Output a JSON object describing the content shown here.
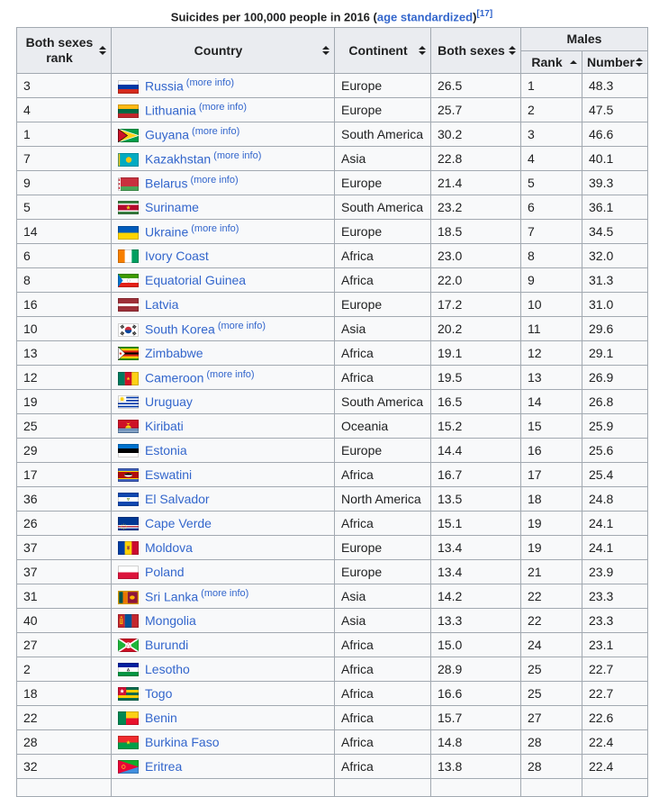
{
  "title": {
    "prefix": "Suicides per 100,000 people in 2016 (",
    "link_text": "age standardized",
    "suffix": ")",
    "reference": "[17]"
  },
  "table": {
    "headers": {
      "both_sexes_rank": "Both sexes rank",
      "country": "Country",
      "continent": "Continent",
      "both_sexes": "Both sexes",
      "males_group": "Males",
      "males_rank": "Rank",
      "males_number": "Number"
    },
    "sort_state": {
      "males_rank": "ascending",
      "others": "unsorted"
    },
    "more_info_label": "(more info)",
    "rows": [
      {
        "both_sexes_rank": "3",
        "country": "Russia",
        "flag": "russia",
        "more_info": true,
        "continent": "Europe",
        "both_sexes": "26.5",
        "males_rank": "1",
        "males_number": "48.3"
      },
      {
        "both_sexes_rank": "4",
        "country": "Lithuania",
        "flag": "lithuania",
        "more_info": true,
        "continent": "Europe",
        "both_sexes": "25.7",
        "males_rank": "2",
        "males_number": "47.5"
      },
      {
        "both_sexes_rank": "1",
        "country": "Guyana",
        "flag": "guyana",
        "more_info": true,
        "continent": "South America",
        "both_sexes": "30.2",
        "males_rank": "3",
        "males_number": "46.6"
      },
      {
        "both_sexes_rank": "7",
        "country": "Kazakhstan",
        "flag": "kazakhstan",
        "more_info": true,
        "continent": "Asia",
        "both_sexes": "22.8",
        "males_rank": "4",
        "males_number": "40.1"
      },
      {
        "both_sexes_rank": "9",
        "country": "Belarus",
        "flag": "belarus",
        "more_info": true,
        "continent": "Europe",
        "both_sexes": "21.4",
        "males_rank": "5",
        "males_number": "39.3"
      },
      {
        "both_sexes_rank": "5",
        "country": "Suriname",
        "flag": "suriname",
        "more_info": false,
        "continent": "South America",
        "both_sexes": "23.2",
        "males_rank": "6",
        "males_number": "36.1"
      },
      {
        "both_sexes_rank": "14",
        "country": "Ukraine",
        "flag": "ukraine",
        "more_info": true,
        "continent": "Europe",
        "both_sexes": "18.5",
        "males_rank": "7",
        "males_number": "34.5"
      },
      {
        "both_sexes_rank": "6",
        "country": "Ivory Coast",
        "flag": "ivory-coast",
        "more_info": false,
        "continent": "Africa",
        "both_sexes": "23.0",
        "males_rank": "8",
        "males_number": "32.0"
      },
      {
        "both_sexes_rank": "8",
        "country": "Equatorial Guinea",
        "flag": "equatorial-guinea",
        "more_info": false,
        "continent": "Africa",
        "both_sexes": "22.0",
        "males_rank": "9",
        "males_number": "31.3"
      },
      {
        "both_sexes_rank": "16",
        "country": "Latvia",
        "flag": "latvia",
        "more_info": false,
        "continent": "Europe",
        "both_sexes": "17.2",
        "males_rank": "10",
        "males_number": "31.0"
      },
      {
        "both_sexes_rank": "10",
        "country": "South Korea",
        "flag": "south-korea",
        "more_info": true,
        "continent": "Asia",
        "both_sexes": "20.2",
        "males_rank": "11",
        "males_number": "29.6"
      },
      {
        "both_sexes_rank": "13",
        "country": "Zimbabwe",
        "flag": "zimbabwe",
        "more_info": false,
        "continent": "Africa",
        "both_sexes": "19.1",
        "males_rank": "12",
        "males_number": "29.1"
      },
      {
        "both_sexes_rank": "12",
        "country": "Cameroon",
        "flag": "cameroon",
        "more_info": true,
        "continent": "Africa",
        "both_sexes": "19.5",
        "males_rank": "13",
        "males_number": "26.9"
      },
      {
        "both_sexes_rank": "19",
        "country": "Uruguay",
        "flag": "uruguay",
        "more_info": false,
        "continent": "South America",
        "both_sexes": "16.5",
        "males_rank": "14",
        "males_number": "26.8"
      },
      {
        "both_sexes_rank": "25",
        "country": "Kiribati",
        "flag": "kiribati",
        "more_info": false,
        "continent": "Oceania",
        "both_sexes": "15.2",
        "males_rank": "15",
        "males_number": "25.9"
      },
      {
        "both_sexes_rank": "29",
        "country": "Estonia",
        "flag": "estonia",
        "more_info": false,
        "continent": "Europe",
        "both_sexes": "14.4",
        "males_rank": "16",
        "males_number": "25.6"
      },
      {
        "both_sexes_rank": "17",
        "country": "Eswatini",
        "flag": "eswatini",
        "more_info": false,
        "continent": "Africa",
        "both_sexes": "16.7",
        "males_rank": "17",
        "males_number": "25.4"
      },
      {
        "both_sexes_rank": "36",
        "country": "El Salvador",
        "flag": "el-salvador",
        "more_info": false,
        "continent": "North America",
        "both_sexes": "13.5",
        "males_rank": "18",
        "males_number": "24.8"
      },
      {
        "both_sexes_rank": "26",
        "country": "Cape Verde",
        "flag": "cape-verde",
        "more_info": false,
        "continent": "Africa",
        "both_sexes": "15.1",
        "males_rank": "19",
        "males_number": "24.1"
      },
      {
        "both_sexes_rank": "37",
        "country": "Moldova",
        "flag": "moldova",
        "more_info": false,
        "continent": "Europe",
        "both_sexes": "13.4",
        "males_rank": "19",
        "males_number": "24.1"
      },
      {
        "both_sexes_rank": "37",
        "country": "Poland",
        "flag": "poland",
        "more_info": false,
        "continent": "Europe",
        "both_sexes": "13.4",
        "males_rank": "21",
        "males_number": "23.9"
      },
      {
        "both_sexes_rank": "31",
        "country": "Sri Lanka",
        "flag": "sri-lanka",
        "more_info": true,
        "continent": "Asia",
        "both_sexes": "14.2",
        "males_rank": "22",
        "males_number": "23.3"
      },
      {
        "both_sexes_rank": "40",
        "country": "Mongolia",
        "flag": "mongolia",
        "more_info": false,
        "continent": "Asia",
        "both_sexes": "13.3",
        "males_rank": "22",
        "males_number": "23.3"
      },
      {
        "both_sexes_rank": "27",
        "country": "Burundi",
        "flag": "burundi",
        "more_info": false,
        "continent": "Africa",
        "both_sexes": "15.0",
        "males_rank": "24",
        "males_number": "23.1"
      },
      {
        "both_sexes_rank": "2",
        "country": "Lesotho",
        "flag": "lesotho",
        "more_info": false,
        "continent": "Africa",
        "both_sexes": "28.9",
        "males_rank": "25",
        "males_number": "22.7"
      },
      {
        "both_sexes_rank": "18",
        "country": "Togo",
        "flag": "togo",
        "more_info": false,
        "continent": "Africa",
        "both_sexes": "16.6",
        "males_rank": "25",
        "males_number": "22.7"
      },
      {
        "both_sexes_rank": "22",
        "country": "Benin",
        "flag": "benin",
        "more_info": false,
        "continent": "Africa",
        "both_sexes": "15.7",
        "males_rank": "27",
        "males_number": "22.6"
      },
      {
        "both_sexes_rank": "28",
        "country": "Burkina Faso",
        "flag": "burkina-faso",
        "more_info": false,
        "continent": "Africa",
        "both_sexes": "14.8",
        "males_rank": "28",
        "males_number": "22.4"
      },
      {
        "both_sexes_rank": "32",
        "country": "Eritrea",
        "flag": "eritrea",
        "more_info": false,
        "continent": "Africa",
        "both_sexes": "13.8",
        "males_rank": "28",
        "males_number": "22.4"
      }
    ]
  },
  "colors": {
    "header_bg": "#eaecf0",
    "row_bg": "#f8f9fa",
    "border": "#a2a9b1",
    "link": "#3366cc",
    "text": "#202122",
    "page_bg": "#ffffff"
  }
}
